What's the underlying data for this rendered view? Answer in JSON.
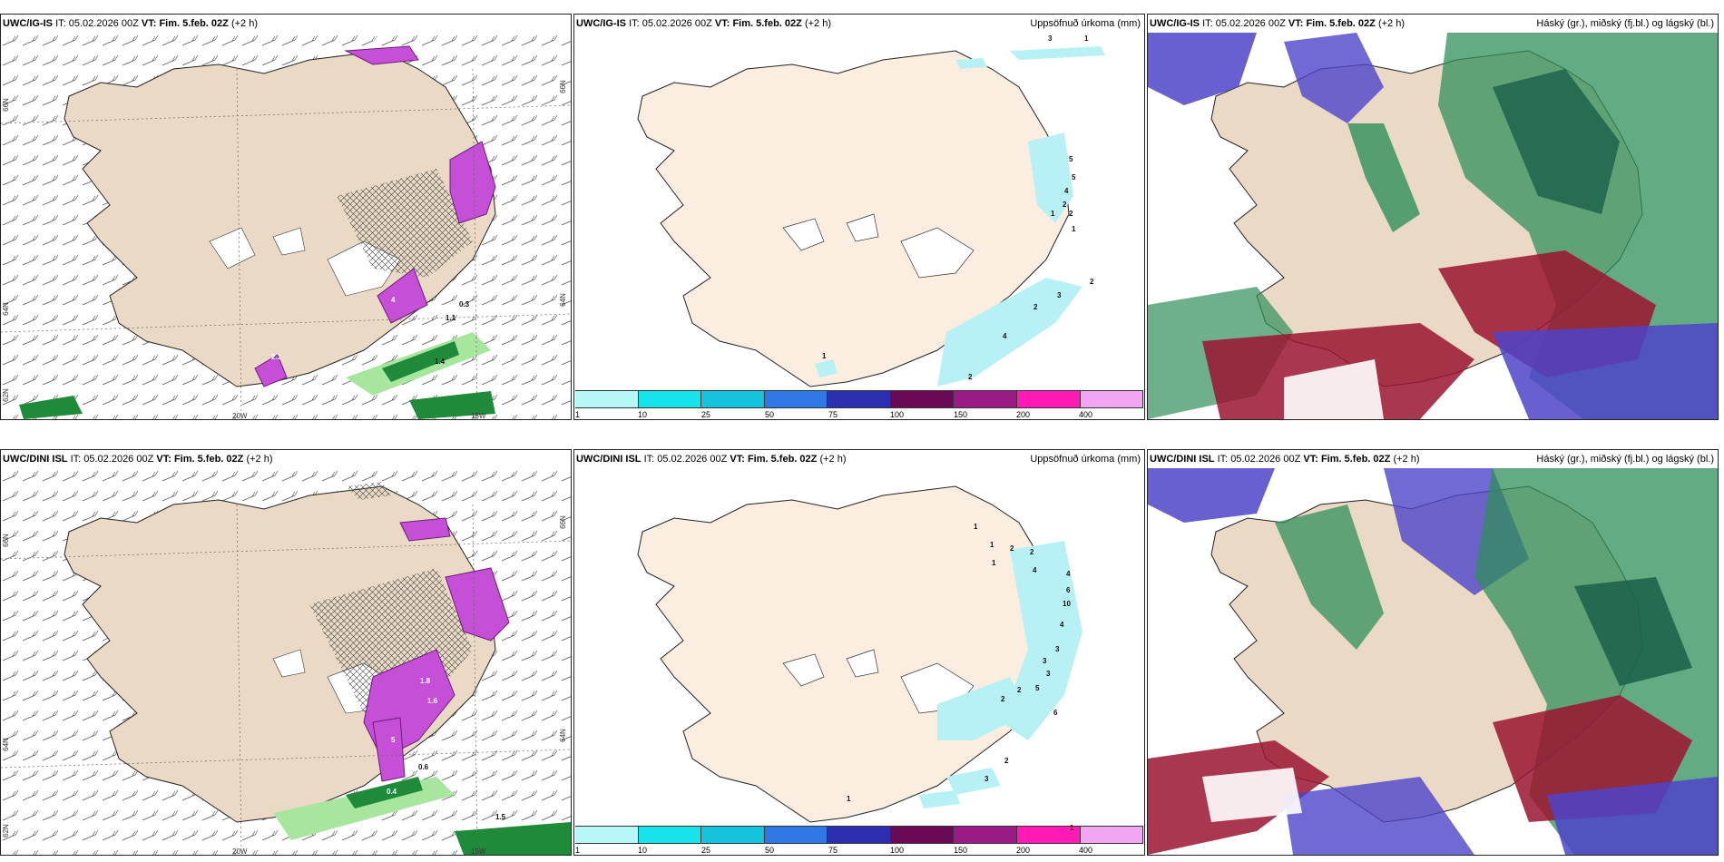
{
  "colors": {
    "land": "#e9d9c5",
    "land_light": "#fbeee0",
    "magenta": "#c64fd8",
    "green_light": "#a8e6a0",
    "green_dark": "#1f8a3a",
    "cyan_light": "#b8f1f5",
    "scale": [
      "#b8f7f7",
      "#16e3ea",
      "#15c3dc",
      "#2f78e8",
      "#2a2fb0",
      "#6a0a57",
      "#9a1b86",
      "#ff1ab5",
      "#f2a6f2"
    ],
    "cloud_high": "#2f8f5a",
    "cloud_mid": "#9b1431",
    "cloud_low": "#4d44c9"
  },
  "panels": {
    "top_left": {
      "model": "UWC/IG-IS",
      "it_label": "IT:",
      "it": "05.02.2026 00Z",
      "vt_label": "VT:",
      "vt": "Fim. 5.feb. 02Z",
      "offset": "(+2 h)"
    },
    "top_mid": {
      "model": "UWC/IG-IS",
      "it_label": "IT:",
      "it": "05.02.2026 00Z",
      "vt_label": "VT:",
      "vt": "Fim. 5.feb. 02Z",
      "offset": "(+2 h)",
      "title": "Uppsöfnuð úrkoma (mm)"
    },
    "top_right": {
      "model": "UWC/IG-IS",
      "it_label": "IT:",
      "it": "05.02.2026 00Z",
      "vt_label": "VT:",
      "vt": "Fim. 5.feb. 02Z",
      "offset": "(+2 h)",
      "title": "Háský (gr.), miðský (fj.bl.) og lágský (bl.)"
    },
    "bot_left": {
      "model": "UWC/DINI ISL",
      "it_label": "IT:",
      "it": "05.02.2026 00Z",
      "vt_label": "VT:",
      "vt": "Fim. 5.feb. 02Z",
      "offset": "(+2 h)"
    },
    "bot_mid": {
      "model": "UWC/DINI ISL",
      "it_label": "IT:",
      "it": "05.02.2026 00Z",
      "vt_label": "VT:",
      "vt": "Fim. 5.feb. 02Z",
      "offset": "(+2 h)",
      "title": "Uppsöfnuð úrkoma (mm)"
    },
    "bot_right": {
      "model": "UWC/DINI ISL",
      "it_label": "IT:",
      "it": "05.02.2026 00Z",
      "vt_label": "VT:",
      "vt": "Fim. 5.feb. 02Z",
      "offset": "(+2 h)",
      "title": "Háský (gr.), miðský (fj.bl.) og lágský (bl.)"
    }
  },
  "colorbar_ticks": [
    "1",
    "10",
    "25",
    "50",
    "75",
    "100",
    "150",
    "200",
    "400"
  ],
  "graticule": {
    "lat_66": "66N",
    "lat_64": "64N",
    "lat_66_right": "66N",
    "lat_64_right": "64N",
    "lat_62": "62N",
    "lon_20": "20W",
    "lon_15": "15W"
  },
  "top_mid_values": [
    "3",
    "1",
    "5",
    "5",
    "4",
    "2",
    "1",
    "2",
    "1",
    "2",
    "3",
    "2",
    "4",
    "2",
    "1"
  ],
  "bot_mid_values": [
    "1",
    "1",
    "2",
    "2",
    "1",
    "4",
    "4",
    "6",
    "10",
    "4",
    "3",
    "3",
    "3",
    "5",
    "2",
    "6",
    "2",
    "1",
    "2",
    "3",
    "1"
  ],
  "top_left_values": [
    "4",
    "1.1",
    "1.4",
    "2.1",
    "0.3",
    "0.5"
  ],
  "bot_left_values": [
    "5",
    "0.6",
    "0.4",
    "1.5",
    "1.6",
    "1.8"
  ]
}
